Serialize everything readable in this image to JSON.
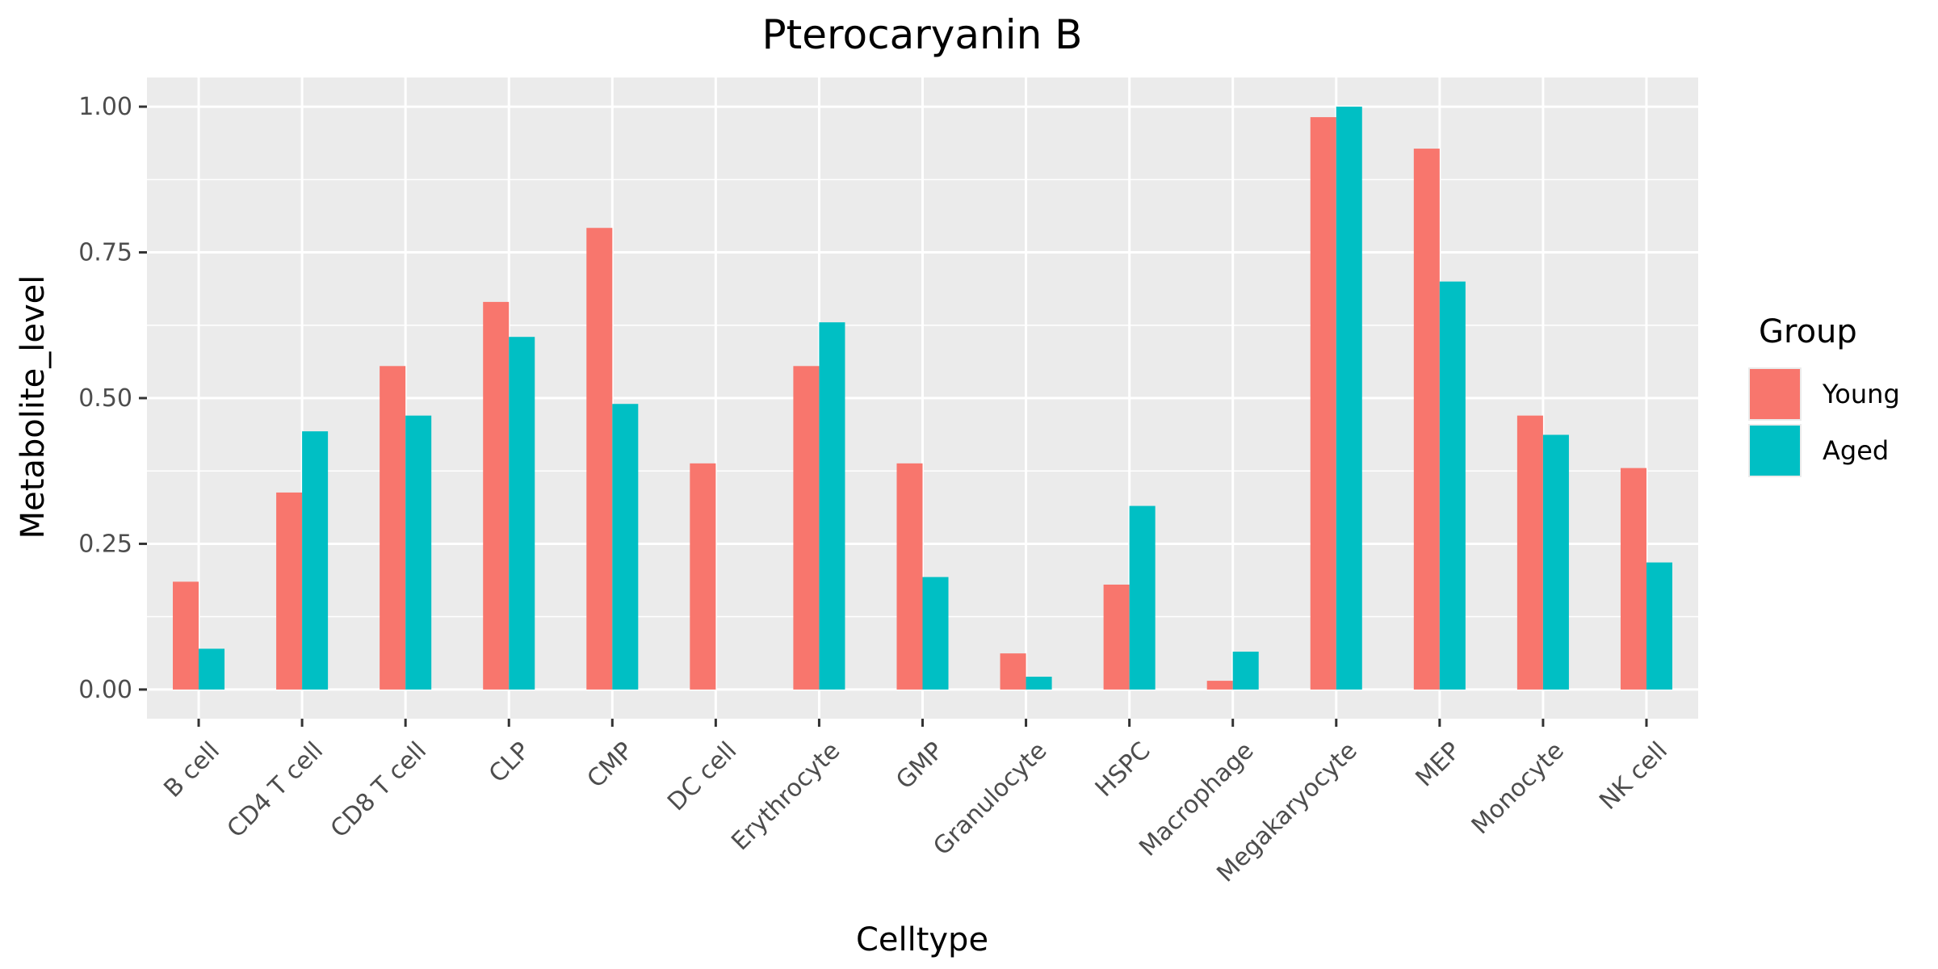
{
  "chart_data": {
    "type": "bar",
    "title": "Pterocaryanin B",
    "xlabel": "Celltype",
    "ylabel": "Metabolite_level",
    "ylim": [
      -0.05,
      1.05
    ],
    "yticks": [
      0.0,
      0.25,
      0.5,
      0.75,
      1.0
    ],
    "ytick_labels": [
      "0.00",
      "0.25",
      "0.50",
      "0.75",
      "1.00"
    ],
    "grid": true,
    "legend_title": "Group",
    "legend_position": "right",
    "categories": [
      "B cell",
      "CD4 T cell",
      "CD8 T cell",
      "CLP",
      "CMP",
      "DC cell",
      "Erythrocyte",
      "GMP",
      "Granulocyte",
      "HSPC",
      "Macrophage",
      "Megakaryocyte",
      "MEP",
      "Monocyte",
      "NK cell"
    ],
    "series": [
      {
        "name": "Young",
        "color": "#F8766D",
        "values": [
          0.185,
          0.338,
          0.555,
          0.665,
          0.792,
          0.388,
          0.555,
          0.388,
          0.062,
          0.18,
          0.015,
          0.982,
          0.928,
          0.47,
          0.38
        ]
      },
      {
        "name": "Aged",
        "color": "#00BFC4",
        "values": [
          0.07,
          0.443,
          0.47,
          0.605,
          0.49,
          0.0,
          0.63,
          0.193,
          0.022,
          0.315,
          0.065,
          1.0,
          0.7,
          0.437,
          0.218
        ]
      }
    ]
  },
  "colors": {
    "panel_background": "#EBEBEB",
    "grid": "#FFFFFF",
    "tick": "#333333"
  }
}
